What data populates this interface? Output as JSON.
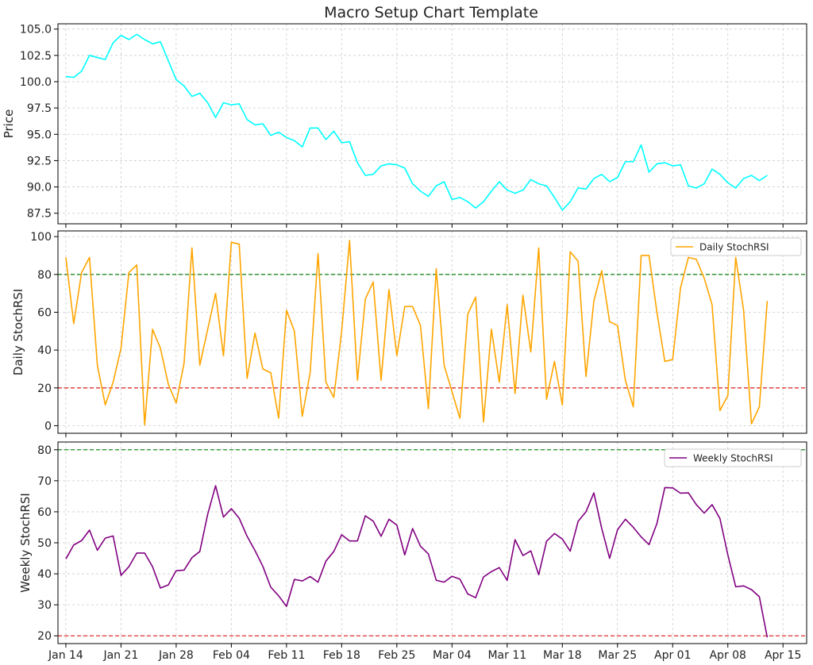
{
  "chart_data": {
    "type": "line",
    "title": "Macro Setup Chart Template",
    "x_tick_labels": [
      "Jan 14",
      "Jan 21",
      "Jan 28",
      "Feb 04",
      "Feb 11",
      "Feb 18",
      "Feb 25",
      "Mar 04",
      "Mar 11",
      "Mar 18",
      "Mar 25",
      "Apr 01",
      "Apr 08",
      "Apr 15"
    ],
    "x_range_days": [
      -1,
      94
    ],
    "grid": true,
    "panels": [
      {
        "ylabel": "Price",
        "ylim": [
          86.5,
          105.5
        ],
        "yticks": [
          "105.0",
          "102.5",
          "100.0",
          "97.5",
          "95.0",
          "92.5",
          "90.0",
          "87.5"
        ],
        "ytick_values": [
          105,
          102.5,
          100,
          97.5,
          95,
          92.5,
          90,
          87.5
        ],
        "series": [
          {
            "name": "Price",
            "color": "#00ffff",
            "values": [
              100.5,
              100.4,
              101.0,
              102.5,
              102.3,
              102.1,
              103.7,
              104.4,
              104.0,
              104.5,
              104.0,
              103.6,
              103.8,
              102.0,
              100.2,
              99.6,
              98.6,
              98.9,
              98.0,
              96.6,
              98.0,
              97.8,
              97.9,
              96.4,
              95.9,
              96.0,
              94.9,
              95.2,
              94.7,
              94.4,
              93.8,
              95.6,
              95.6,
              94.5,
              95.3,
              94.2,
              94.3,
              92.3,
              91.1,
              91.2,
              92.0,
              92.2,
              92.1,
              91.8,
              90.3,
              89.6,
              89.1,
              90.1,
              90.5,
              88.8,
              89.0,
              88.6,
              88.0,
              88.6,
              89.6,
              90.5,
              89.7,
              89.4,
              89.7,
              90.7,
              90.3,
              90.1,
              89.0,
              87.8,
              88.6,
              89.9,
              89.8,
              90.8,
              91.2,
              90.5,
              90.9,
              92.4,
              92.4,
              94.0,
              91.4,
              92.2,
              92.3,
              92.0,
              92.1,
              90.1,
              89.9,
              90.3,
              91.7,
              91.2,
              90.4,
              89.9,
              90.8,
              91.1,
              90.6,
              91.1
            ]
          }
        ],
        "legend": null,
        "hlines": []
      },
      {
        "ylabel": "Daily StochRSI",
        "ylim": [
          -4,
          103
        ],
        "yticks": [
          "100",
          "80",
          "60",
          "40",
          "20",
          "0"
        ],
        "ytick_values": [
          100,
          80,
          60,
          40,
          20,
          0
        ],
        "series": [
          {
            "name": "Daily StochRSI",
            "color": "#ffa500",
            "values": [
              89,
              54,
              81,
              89,
              32,
              11,
              23,
              41,
              81,
              85,
              0.5,
              51,
              41,
              22,
              12,
              33,
              94,
              32,
              51,
              70,
              37,
              97,
              96,
              25,
              49,
              30,
              28,
              4,
              61,
              50,
              5,
              28,
              91,
              23,
              15,
              50,
              98,
              24,
              67,
              76,
              24,
              72,
              37,
              63,
              63,
              53,
              9,
              83,
              32,
              18,
              4,
              59,
              68,
              2,
              51,
              23,
              64,
              17,
              69,
              39,
              94,
              14,
              34,
              11,
              92,
              87,
              26,
              66,
              82,
              55,
              53,
              24,
              10,
              90,
              90,
              60,
              34,
              35,
              73,
              89,
              88,
              78,
              64,
              8,
              16,
              89,
              61,
              1,
              10,
              66
            ]
          }
        ],
        "legend": {
          "label": "Daily StochRSI",
          "loc": "upper right"
        },
        "hlines": [
          {
            "value": 80,
            "color": "#228b22"
          },
          {
            "value": 20,
            "color": "#e03030"
          }
        ]
      },
      {
        "ylabel": "Weekly StochRSI",
        "ylim": [
          17.5,
          82.5
        ],
        "yticks": [
          "80",
          "70",
          "60",
          "50",
          "40",
          "30",
          "20"
        ],
        "ytick_values": [
          80,
          70,
          60,
          50,
          40,
          30,
          20
        ],
        "series": [
          {
            "name": "Weekly StochRSI",
            "color": "#800080",
            "values": [
              44.8,
              49.3,
              50.7,
              54.1,
              47.6,
              51.5,
              52.2,
              39.5,
              42.3,
              46.7,
              46.7,
              42.3,
              35.4,
              36.4,
              41.0,
              41.2,
              45.2,
              47.2,
              59.2,
              68.4,
              58.3,
              61.0,
              57.9,
              52.1,
              47.5,
              42.4,
              35.7,
              32.9,
              29.5,
              38.2,
              37.7,
              39.1,
              37.3,
              44.1,
              47.2,
              52.6,
              50.6,
              50.6,
              58.7,
              57.0,
              52.1,
              57.6,
              55.7,
              46.1,
              54.6,
              48.9,
              46.4,
              37.9,
              37.3,
              39.2,
              38.3,
              33.5,
              32.3,
              39.0,
              40.7,
              42.0,
              37.9,
              51.0,
              45.9,
              47.4,
              39.7,
              50.5,
              53.0,
              51.2,
              47.3,
              56.9,
              60.0,
              66.1,
              54.6,
              45.0,
              54.2,
              57.6,
              55.0,
              51.9,
              49.4,
              56.2,
              67.8,
              67.7,
              66.0,
              66.1,
              62.3,
              59.6,
              62.3,
              57.8,
              46.1,
              35.8,
              36.1,
              34.9,
              32.6,
              19.5
            ]
          }
        ],
        "legend": {
          "label": "Weekly StochRSI",
          "loc": "upper right"
        },
        "hlines": [
          {
            "value": 80,
            "color": "#228b22"
          },
          {
            "value": 20,
            "color": "#e03030"
          }
        ]
      }
    ]
  }
}
